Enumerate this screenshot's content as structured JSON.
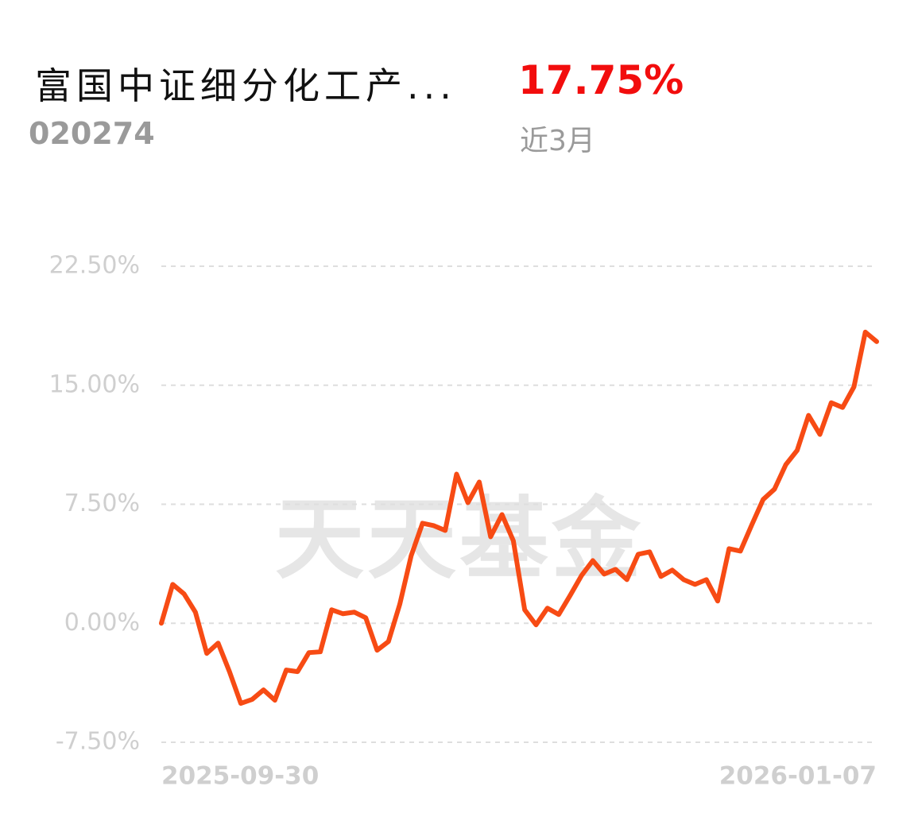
{
  "header": {
    "title": "富国中证细分化工产...",
    "code": "020274",
    "return": "17.75%",
    "period": "近3月"
  },
  "watermark": "天天基金",
  "chart_data": {
    "type": "line",
    "categories": [
      "2025-09-30",
      null,
      null,
      null,
      null,
      null,
      null,
      null,
      null,
      null,
      null,
      null,
      null,
      null,
      null,
      null,
      null,
      null,
      null,
      null,
      null,
      null,
      null,
      null,
      null,
      null,
      null,
      null,
      null,
      null,
      null,
      null,
      null,
      null,
      null,
      null,
      null,
      null,
      null,
      null,
      null,
      null,
      null,
      null,
      null,
      null,
      null,
      null,
      null,
      null,
      null,
      null,
      null,
      null,
      null,
      null,
      null,
      null,
      null,
      null,
      null,
      null,
      null,
      "2026-01-07"
    ],
    "series": [
      {
        "color": "#f74b14",
        "values": [
          0,
          2.45,
          1.85,
          0.7,
          -1.9,
          -1.25,
          -3.05,
          -5.05,
          -4.8,
          -4.2,
          -4.85,
          -2.95,
          -3.05,
          -1.85,
          -1.8,
          0.85,
          0.6,
          0.7,
          0.35,
          -1.7,
          -1.15,
          1.2,
          4.25,
          6.3,
          6.15,
          5.85,
          9.4,
          7.6,
          8.9,
          5.45,
          6.85,
          5.2,
          0.85,
          -0.1,
          0.95,
          0.55,
          1.75,
          3.0,
          3.95,
          3.1,
          3.4,
          2.75,
          4.35,
          4.5,
          2.95,
          3.35,
          2.75,
          2.45,
          2.75,
          1.4,
          4.7,
          4.55,
          6.2,
          7.8,
          8.45,
          10.0,
          10.9,
          13.1,
          11.9,
          13.9,
          13.6,
          14.9,
          18.35,
          17.75
        ]
      }
    ],
    "ylim": [
      -7.5,
      22.5
    ],
    "yticks": [
      {
        "value": -7.5,
        "label": "-7.50%"
      },
      {
        "value": 0,
        "label": "0.00%"
      },
      {
        "value": 7.5,
        "label": "7.50%"
      },
      {
        "value": 15,
        "label": "15.00%"
      },
      {
        "value": 22.5,
        "label": "22.50%"
      }
    ],
    "grid": true
  }
}
